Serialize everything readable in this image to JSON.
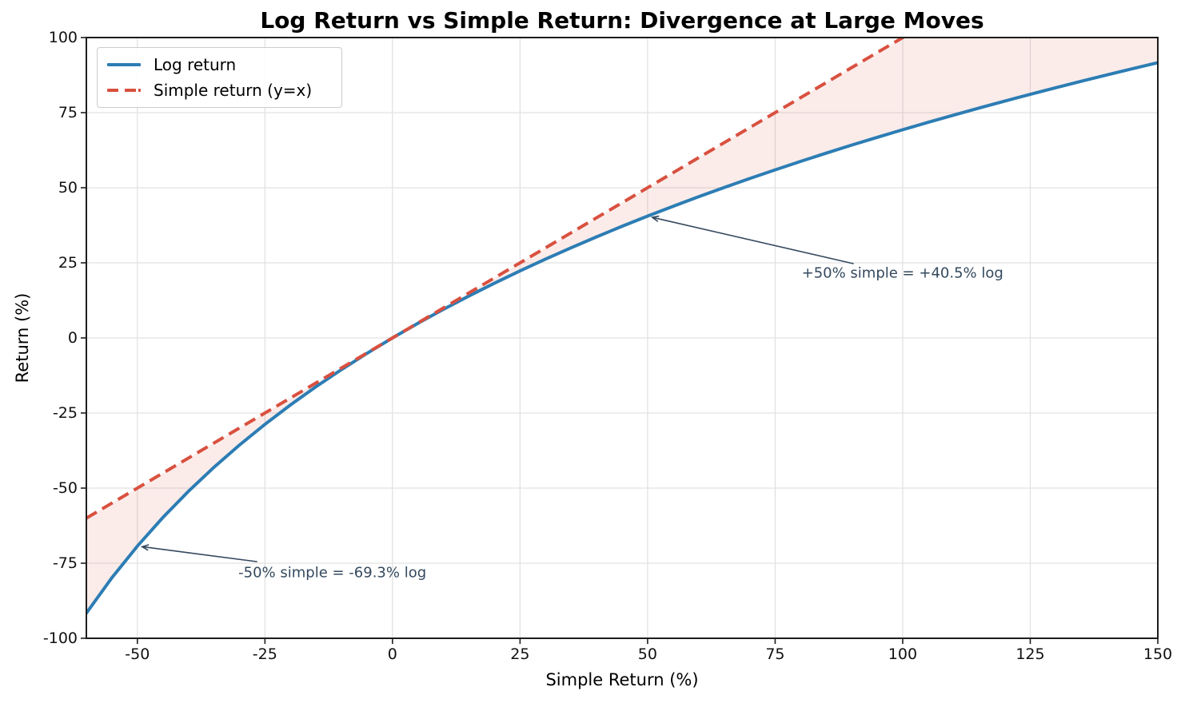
{
  "chart_data": {
    "type": "line",
    "title": "Log Return vs Simple Return: Divergence at Large Moves",
    "xlabel": "Simple Return (%)",
    "ylabel": "Return (%)",
    "xlim": [
      -60,
      150
    ],
    "ylim": [
      -100,
      100
    ],
    "x_ticks": [
      -50,
      -25,
      0,
      25,
      50,
      75,
      100,
      125,
      150
    ],
    "y_ticks": [
      -100,
      -75,
      -50,
      -25,
      0,
      25,
      50,
      75,
      100
    ],
    "grid": true,
    "legend_position": "upper-left",
    "series": [
      {
        "name": "Log return",
        "color": "#2d7db4",
        "style": "solid",
        "width": 4,
        "x": [
          -60,
          -55,
          -50,
          -45,
          -40,
          -35,
          -30,
          -25,
          -20,
          -15,
          -10,
          -5,
          0,
          5,
          10,
          15,
          20,
          25,
          30,
          35,
          40,
          45,
          50,
          55,
          60,
          65,
          70,
          75,
          80,
          85,
          90,
          95,
          100,
          105,
          110,
          115,
          120,
          125,
          130,
          135,
          140,
          145,
          150
        ],
        "y": [
          -91.63,
          -79.85,
          -69.31,
          -59.78,
          -51.08,
          -43.08,
          -35.67,
          -28.77,
          -22.31,
          -16.25,
          -10.54,
          -5.13,
          0,
          4.88,
          9.53,
          13.98,
          18.23,
          22.31,
          26.24,
          30.01,
          33.65,
          37.16,
          40.55,
          43.83,
          47.0,
          50.08,
          53.06,
          55.96,
          58.78,
          61.52,
          64.19,
          66.78,
          69.31,
          71.78,
          74.19,
          76.55,
          78.85,
          81.09,
          83.29,
          85.44,
          87.55,
          89.61,
          91.63
        ]
      },
      {
        "name": "Simple return (y=x)",
        "color": "#d9503f",
        "style": "dashed",
        "width": 4,
        "x": [
          -60,
          150
        ],
        "y": [
          -60,
          150
        ]
      }
    ],
    "fill_between": {
      "between": [
        "Log return",
        "Simple return (y=x)"
      ],
      "color": "#d9503f",
      "alpha": 0.1
    },
    "annotations": [
      {
        "text": "+50% simple = +40.5% log",
        "xy": [
          50,
          40.5
        ],
        "text_xy": [
          80.2,
          21.5
        ],
        "arrow_from": [
          90.4,
          24.7
        ]
      },
      {
        "text": "-50% simple = -69.3% log",
        "xy": [
          -50,
          -69.3
        ],
        "text_xy": [
          -30.2,
          -78.2
        ],
        "arrow_from": [
          -26.5,
          -74.5
        ]
      }
    ],
    "colors": {
      "grid": "#e2e2e2",
      "spine": "#1c1c1c",
      "tick": "#1c1c1c",
      "fill": "rgba(217, 80, 63, 0.11)",
      "annotation": "#34495e"
    }
  }
}
